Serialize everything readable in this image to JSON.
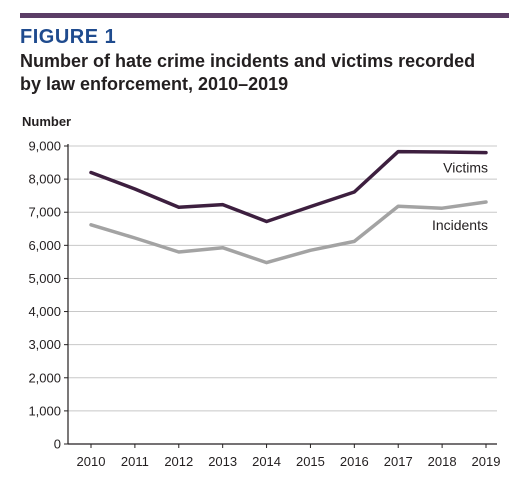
{
  "figure_label": "FIGURE 1",
  "title_line1": "Number of hate crime incidents and victims recorded",
  "title_line2": "by law enforcement, 2010–2019",
  "colors": {
    "rule": "#5b3d66",
    "figure_label": "#1f4b8e",
    "victims": "#3d1f3f",
    "incidents": "#a3a3a3",
    "grid": "#c8c8c8"
  },
  "chart_data": {
    "type": "line",
    "title": "Number of hate crime incidents and victims recorded by law enforcement, 2010–2019",
    "ylabel": "Number",
    "xlabel": "",
    "ylim": [
      0,
      9000
    ],
    "yticks": [
      0,
      1000,
      2000,
      3000,
      4000,
      5000,
      6000,
      7000,
      8000,
      9000
    ],
    "ytick_labels": [
      "0",
      "1,000",
      "2,000",
      "3,000",
      "4,000",
      "5,000",
      "6,000",
      "7,000",
      "8,000",
      "9,000"
    ],
    "grid": "horizontal",
    "x": [
      "2010",
      "2011",
      "2012",
      "2013",
      "2014",
      "2015",
      "2016",
      "2017",
      "2018",
      "2019"
    ],
    "series": [
      {
        "name": "Victims",
        "values": [
          8200,
          7700,
          7150,
          7230,
          6720,
          7170,
          7610,
          8830,
          8820,
          8800
        ]
      },
      {
        "name": "Incidents",
        "values": [
          6620,
          6220,
          5800,
          5930,
          5480,
          5850,
          6120,
          7180,
          7120,
          7310
        ]
      }
    ]
  }
}
